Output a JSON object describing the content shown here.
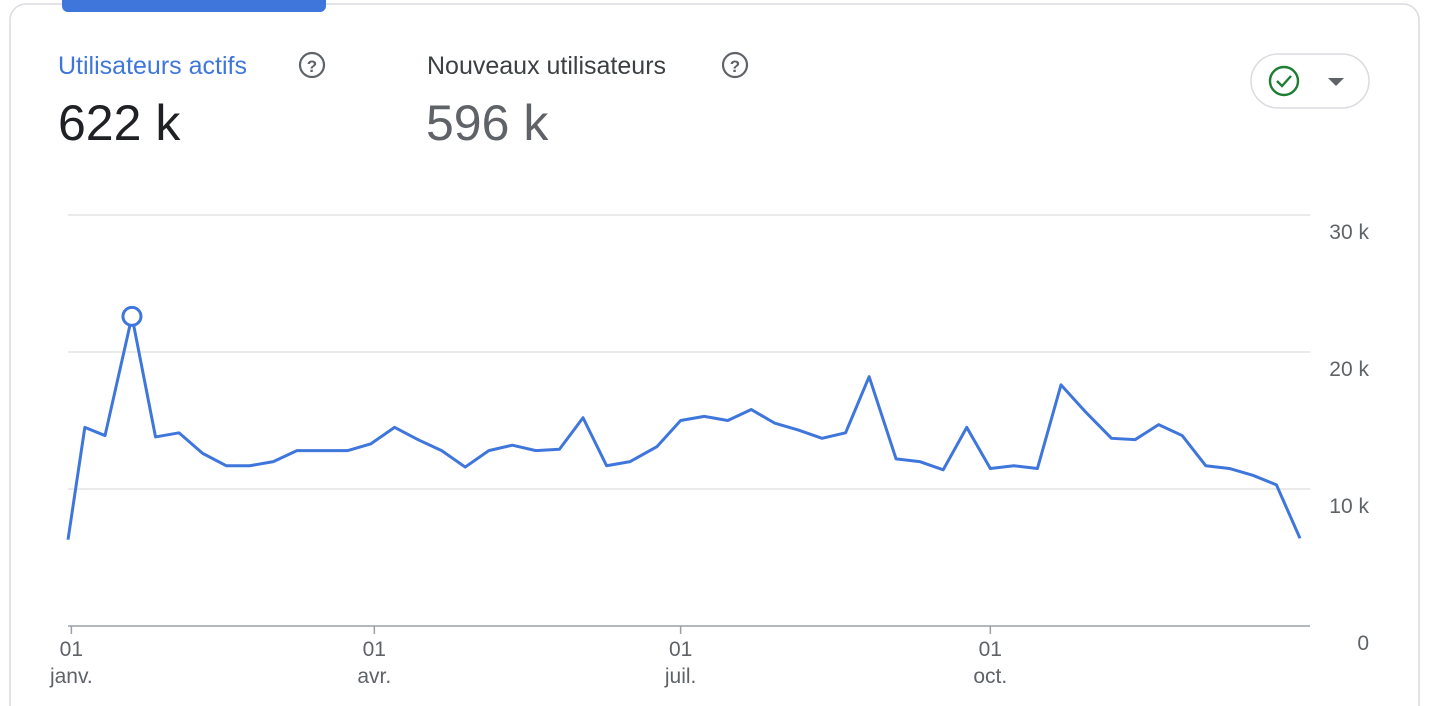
{
  "metrics": [
    {
      "label": "Utilisateurs actifs",
      "value": "622 k"
    },
    {
      "label": "Nouveaux utilisateurs",
      "value": "596 k"
    }
  ],
  "chart_data": {
    "type": "line",
    "x": [
      -1,
      4,
      10,
      18,
      25,
      32,
      39,
      46,
      53,
      60,
      67,
      74,
      82,
      89,
      96,
      103,
      110,
      117,
      124,
      131,
      138,
      145,
      152,
      159,
      166,
      174,
      181,
      188,
      195,
      202,
      209,
      216,
      223,
      230,
      237,
      245,
      252,
      259,
      266,
      273,
      280,
      287,
      294,
      301,
      309,
      316,
      323,
      330,
      337,
      344,
      351,
      358,
      365
    ],
    "series": [
      {
        "name": "Utilisateurs actifs",
        "color": "#3f76dc",
        "values": [
          6.3,
          14.5,
          13.9,
          22.6,
          13.8,
          14.1,
          12.6,
          11.7,
          11.7,
          12.0,
          12.8,
          12.8,
          12.8,
          13.3,
          14.5,
          13.6,
          12.8,
          11.6,
          12.8,
          13.2,
          12.8,
          12.9,
          15.2,
          11.7,
          12.0,
          13.1,
          15.0,
          15.3,
          15.0,
          15.8,
          14.8,
          14.3,
          13.7,
          14.1,
          18.2,
          12.2,
          12.0,
          11.4,
          14.5,
          11.5,
          11.7,
          11.5,
          17.6,
          15.7,
          13.7,
          13.6,
          14.7,
          13.9,
          11.7,
          11.5,
          11.0,
          10.3,
          6.4
        ]
      }
    ],
    "highlight": 3,
    "xlim": [
      -1,
      365
    ],
    "xticks": [
      {
        "value": 0,
        "label": "01\njanv."
      },
      {
        "value": 90,
        "label": "01\navr."
      },
      {
        "value": 181,
        "label": "01\njuil."
      },
      {
        "value": 273,
        "label": "01\noct."
      }
    ],
    "ylim": [
      0,
      30
    ],
    "yticks": [
      0,
      {
        "value": 10,
        "label": "10 k"
      },
      {
        "value": 20,
        "label": "20 k"
      },
      {
        "value": 30,
        "label": "30 k"
      }
    ],
    "grid": true
  }
}
